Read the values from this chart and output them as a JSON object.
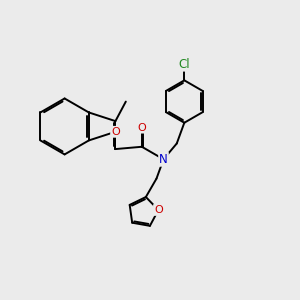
{
  "background_color": "#ebebeb",
  "atom_colors": {
    "O": "#cc0000",
    "N": "#0000cc",
    "Cl": "#228822"
  },
  "lw": 1.4,
  "dbo": 0.055
}
